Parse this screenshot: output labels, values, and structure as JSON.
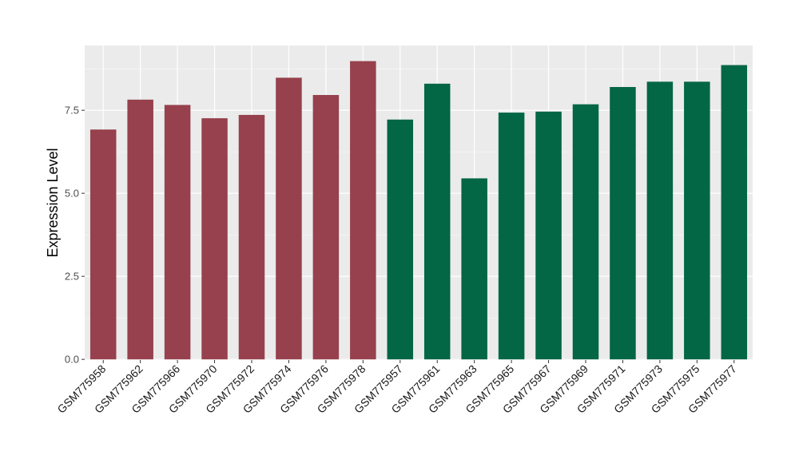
{
  "chart_data": {
    "type": "bar",
    "title": "",
    "xlabel": "",
    "ylabel": "Expression Level",
    "ylim": [
      -0.02,
      9.45
    ],
    "yticks": [
      0.0,
      2.5,
      5.0,
      7.5
    ],
    "ytick_labels": [
      "0.0",
      "2.5",
      "5.0",
      "7.5"
    ],
    "grid": true,
    "legend": "none",
    "panel_background": "#ebebeb",
    "gridline_color": "#ffffff",
    "categories": [
      "GSM775958",
      "GSM775962",
      "GSM775966",
      "GSM775970",
      "GSM775972",
      "GSM775974",
      "GSM775976",
      "GSM775978",
      "GSM775957",
      "GSM775961",
      "GSM775963",
      "GSM775965",
      "GSM775967",
      "GSM775969",
      "GSM775971",
      "GSM775973",
      "GSM775975",
      "GSM775977"
    ],
    "values": [
      6.92,
      7.82,
      7.66,
      7.26,
      7.36,
      8.48,
      7.96,
      8.98,
      7.22,
      8.3,
      5.45,
      7.43,
      7.46,
      7.68,
      8.2,
      8.36,
      8.36,
      8.86
    ],
    "bar_colors": [
      "#96414d",
      "#96414d",
      "#96414d",
      "#96414d",
      "#96414d",
      "#96414d",
      "#96414d",
      "#96414d",
      "#036645",
      "#036645",
      "#036645",
      "#036645",
      "#036645",
      "#036645",
      "#036645",
      "#036645",
      "#036645",
      "#036645"
    ]
  }
}
